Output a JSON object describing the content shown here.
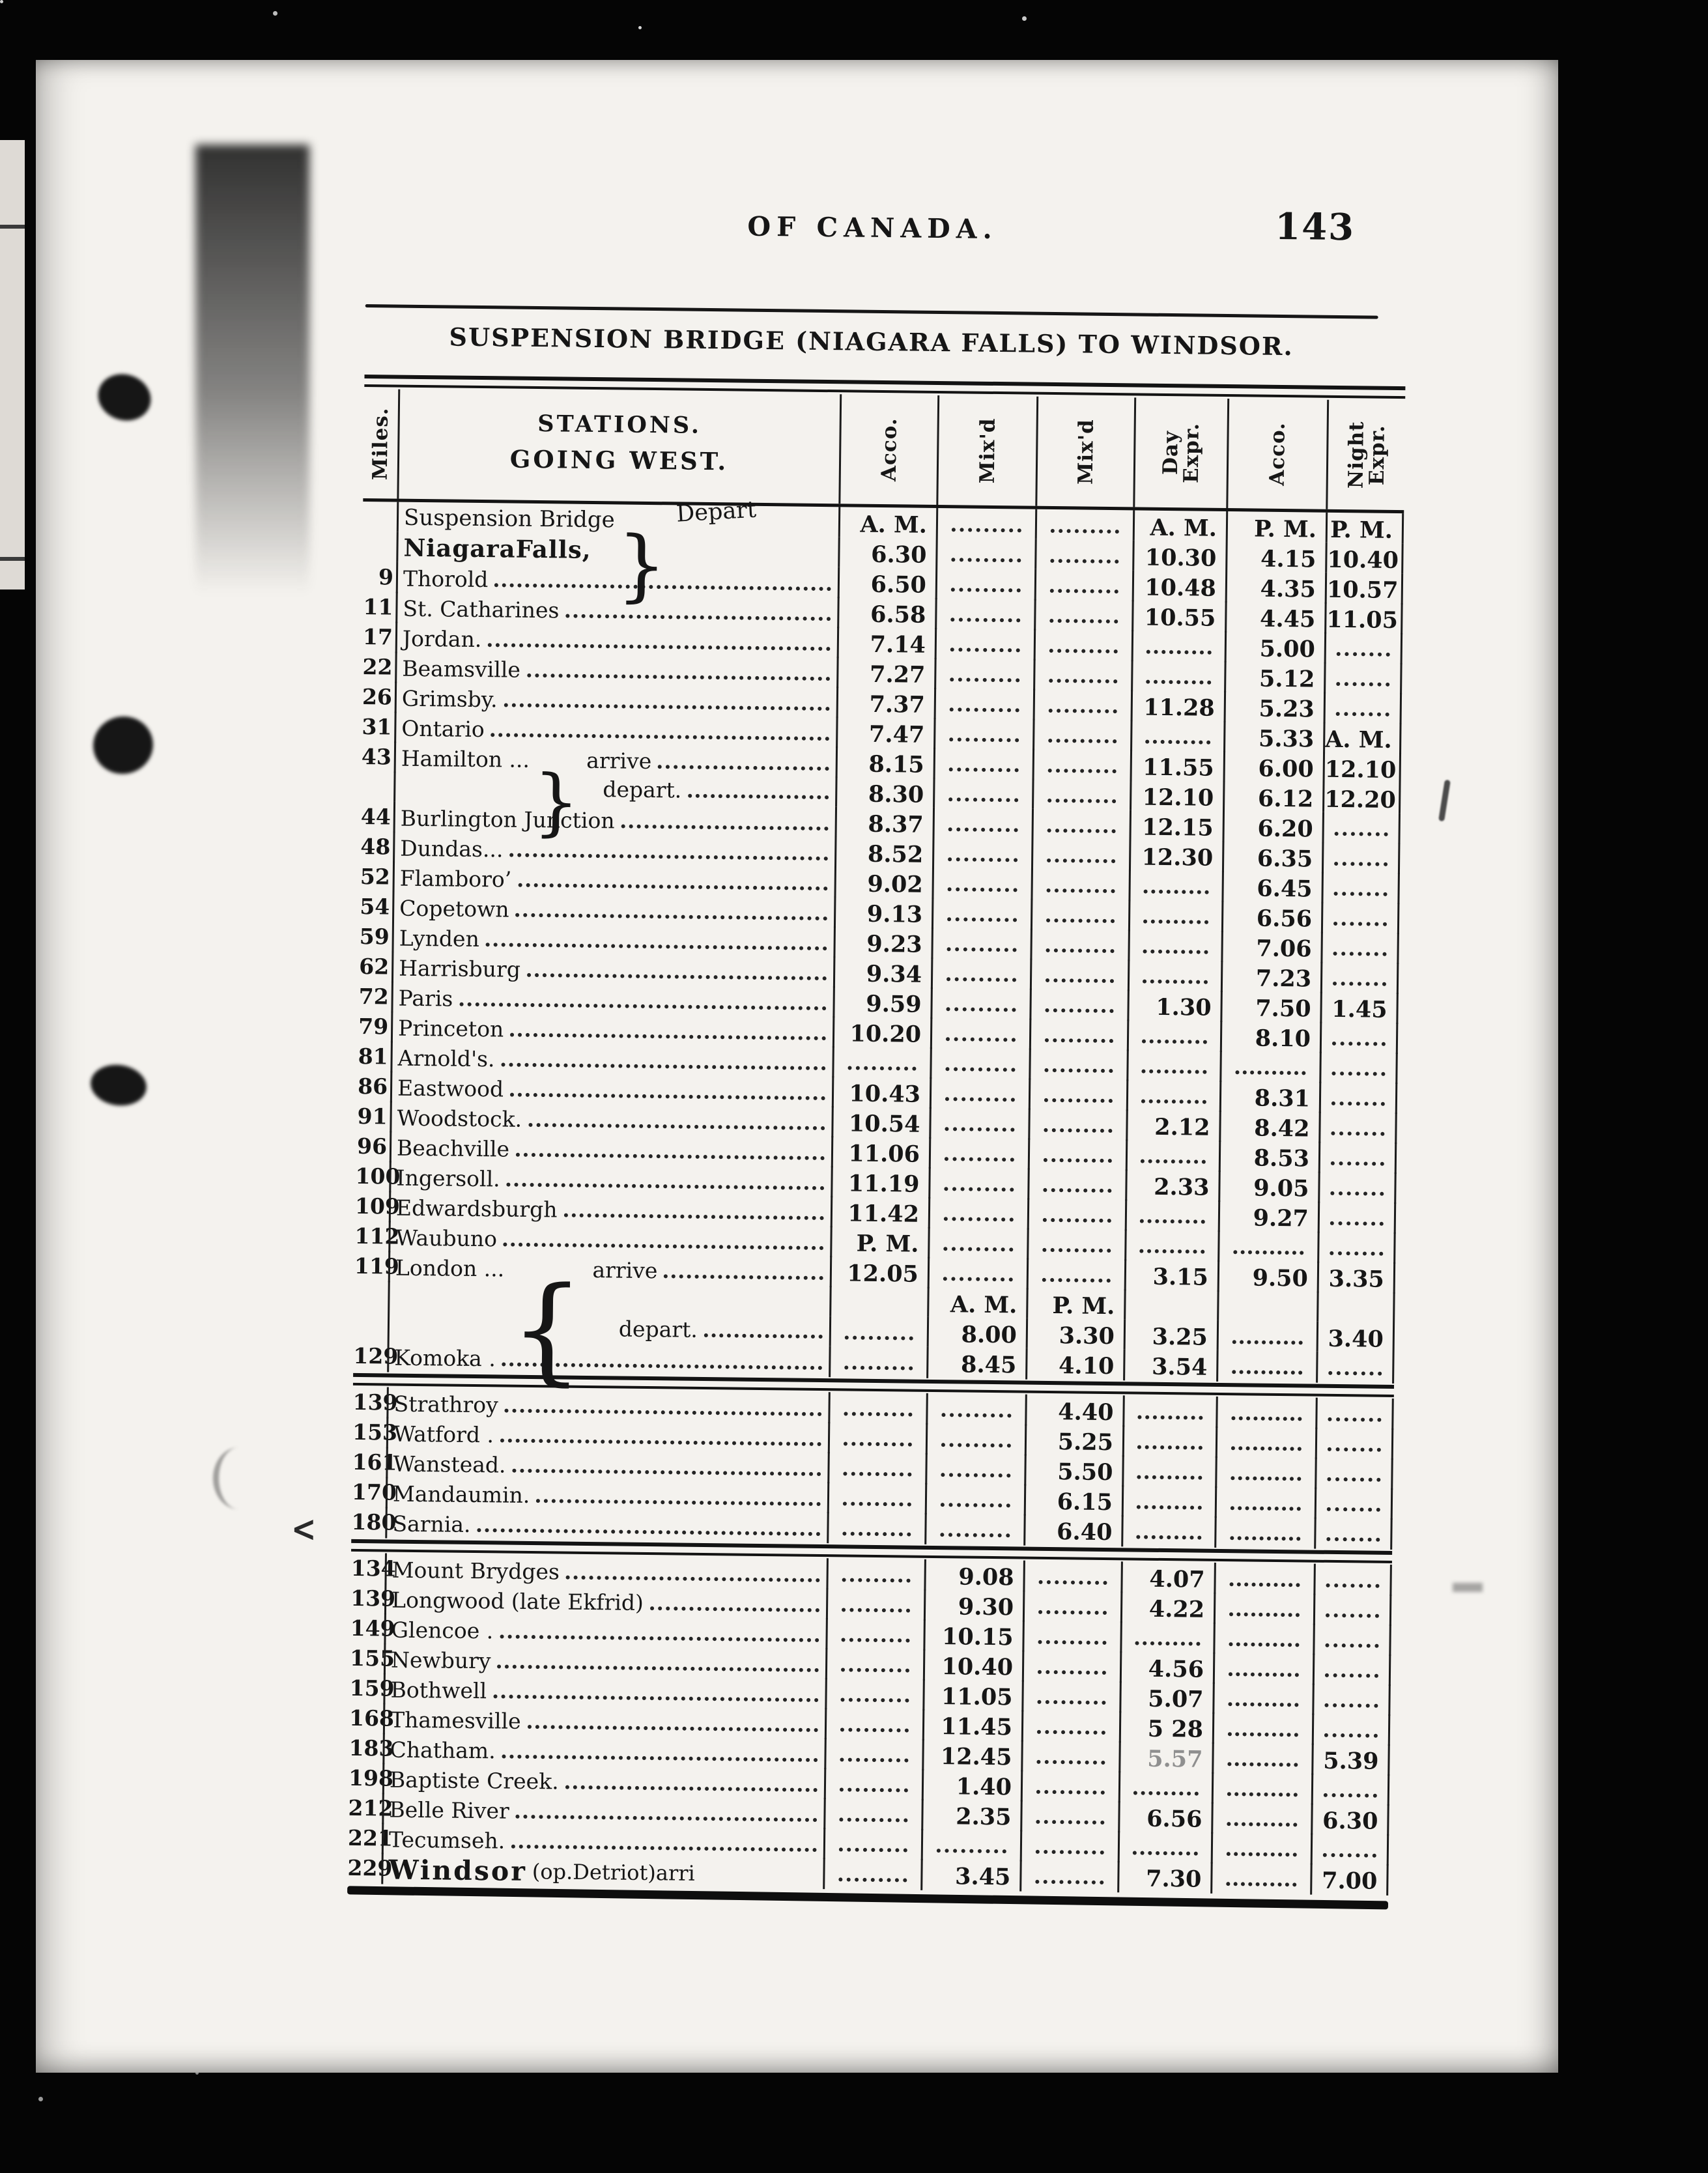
{
  "header": {
    "running_title": "OF CANADA.",
    "page_number": "143",
    "title": "SUSPENSION BRIDGE (NIAGARA FALLS) TO WINDSOR."
  },
  "table": {
    "col_headers": {
      "miles": "Miles.",
      "stations_line1": "STATIONS.",
      "stations_line2": "GOING WEST.",
      "time_cols": [
        "Acco.",
        "Mix'd",
        "Mix'd",
        "Day\nExpr.",
        "Acco.",
        "Night\nExpr."
      ]
    },
    "rows": [
      {
        "cls": "susp1",
        "n": "Suspension Bridge",
        "brace": "}",
        "tag": "Depart",
        "c": [
          "A. M.",
          "......",
          "......",
          "A. M.",
          "P. M.",
          "P. M."
        ]
      },
      {
        "cls": "susp2",
        "n": "NiagaraFalls,",
        "b": 1,
        "c": [
          "6.30",
          "......",
          "......",
          "10.30",
          "4.15",
          "10.40"
        ]
      },
      {
        "m": "9",
        "n": "Thorold",
        "lead": 1,
        "c": [
          "6.50",
          "......",
          "......",
          "10.48",
          "4.35",
          "10.57"
        ]
      },
      {
        "m": "11",
        "n": "St. Catharines",
        "lead": 1,
        "c": [
          "6.58",
          "......",
          "......",
          "10.55",
          "4.45",
          "11.05"
        ]
      },
      {
        "m": "17",
        "n": "Jordan.",
        "lead": 1,
        "c": [
          "7.14",
          "......",
          "......",
          "......",
          "5.00",
          "......"
        ]
      },
      {
        "m": "22",
        "n": "Beamsville",
        "lead": 1,
        "c": [
          "7.27",
          "......",
          "......",
          "......",
          "5.12",
          "......"
        ]
      },
      {
        "m": "26",
        "n": "Grimsby.",
        "lead": 1,
        "c": [
          "7.37",
          "......",
          "......",
          "11.28",
          "5.23",
          "......"
        ]
      },
      {
        "m": "31",
        "n": "Ontario",
        "lead": 1,
        "c": [
          "7.47",
          "......",
          "......",
          "......",
          "5.33",
          "A. M."
        ]
      },
      {
        "m": "43",
        "cls": "ham1",
        "n": "Hamilton ...",
        "brace": "}",
        "tag": "arrive",
        "lead": 1,
        "c": [
          "8.15",
          "......",
          "......",
          "11.55",
          "6.00",
          "12.10"
        ]
      },
      {
        "cls": "ham2",
        "tag": "depart.",
        "lead": 1,
        "c": [
          "8.30",
          "......",
          "......",
          "12.10",
          "6.12",
          "12.20"
        ]
      },
      {
        "m": "44",
        "n": "Burlington Junction",
        "lead": 1,
        "c": [
          "8.37",
          "......",
          "......",
          "12.15",
          "6.20",
          "......"
        ]
      },
      {
        "m": "48",
        "n": "Dundas...",
        "lead": 1,
        "c": [
          "8.52",
          "......",
          "......",
          "12.30",
          "6.35",
          "......"
        ]
      },
      {
        "m": "52",
        "n": "Flamboro’",
        "lead": 1,
        "c": [
          "9.02",
          "......",
          "......",
          "......",
          "6.45",
          "......"
        ]
      },
      {
        "m": "54",
        "n": "Copetown",
        "lead": 1,
        "c": [
          "9.13",
          "......",
          "......",
          "......",
          "6.56",
          "......"
        ]
      },
      {
        "m": "59",
        "n": "Lynden",
        "lead": 1,
        "c": [
          "9.23",
          "......",
          "......",
          "......",
          "7.06",
          "......"
        ]
      },
      {
        "m": "62",
        "n": "Harrisburg",
        "lead": 1,
        "c": [
          "9.34",
          "......",
          "......",
          "......",
          "7.23",
          "......"
        ]
      },
      {
        "m": "72",
        "n": "Paris",
        "lead": 1,
        "c": [
          "9.59",
          "......",
          "......",
          "1.30",
          "7.50",
          "1.45"
        ]
      },
      {
        "m": "79",
        "n": "Princeton",
        "lead": 1,
        "c": [
          "10.20",
          "......",
          "......",
          "......",
          "8.10",
          "......"
        ]
      },
      {
        "m": "81",
        "n": "Arnold's.",
        "lead": 1,
        "c": [
          "......",
          "......",
          "......",
          "......",
          "......",
          "......"
        ]
      },
      {
        "m": "86",
        "n": "Eastwood",
        "lead": 1,
        "c": [
          "10.43",
          "......",
          "......",
          "......",
          "8.31",
          "......"
        ]
      },
      {
        "m": "91",
        "n": "Woodstock.",
        "lead": 1,
        "c": [
          "10.54",
          "......",
          "......",
          "2.12",
          "8.42",
          "......"
        ]
      },
      {
        "m": "96",
        "n": "Beachville",
        "lead": 1,
        "c": [
          "11.06",
          "......",
          "......",
          "......",
          "8.53",
          "......"
        ]
      },
      {
        "m": "100",
        "n": "Ingersoll.",
        "lead": 1,
        "c": [
          "11.19",
          "......",
          "......",
          "2.33",
          "9.05",
          "......"
        ]
      },
      {
        "m": "109",
        "n": "Edwardsburgh",
        "lead": 1,
        "c": [
          "11.42",
          "......",
          "......",
          "......",
          "9.27",
          "......"
        ]
      },
      {
        "m": "112",
        "n": "Waubuno",
        "lead": 1,
        "c": [
          "P. M.",
          "......",
          "......",
          "......",
          "......",
          "......"
        ]
      },
      {
        "m": "119",
        "cls": "lon1",
        "n": "London ...",
        "brace": "{",
        "tag": "arrive",
        "lead": 1,
        "c": [
          "12.05",
          "......",
          "......",
          "3.15",
          "9.50",
          "3.35"
        ]
      },
      {
        "cls": "lonmk",
        "c": [
          "",
          "A. M.",
          "P. M.",
          "",
          "",
          ""
        ]
      },
      {
        "cls": "lon2",
        "tag": "depart.",
        "lead": 1,
        "c": [
          "......",
          "8.00",
          "3.30",
          "3.25",
          "......",
          "3.40"
        ]
      },
      {
        "m": "129",
        "n": "Komoka .",
        "lead": 1,
        "c": [
          "......",
          "8.45",
          "4.10",
          "3.54",
          "......",
          "......"
        ]
      },
      {
        "sep": 1
      },
      {
        "m": "139",
        "n": "Strathroy",
        "lead": 1,
        "c": [
          "......",
          "......",
          "4.40",
          "......",
          "......",
          "......"
        ]
      },
      {
        "m": "153",
        "n": "Watford .",
        "lead": 1,
        "c": [
          "......",
          "......",
          "5.25",
          "......",
          "......",
          "......"
        ]
      },
      {
        "m": "161",
        "n": "Wanstead.",
        "lead": 1,
        "c": [
          "......",
          "......",
          "5.50",
          "......",
          "......",
          "......"
        ]
      },
      {
        "m": "170",
        "n": "Mandaumin.",
        "lead": 1,
        "c": [
          "......",
          "......",
          "6.15",
          "......",
          "......",
          "......"
        ]
      },
      {
        "m": "180",
        "n": "Sarnia.",
        "lead": 1,
        "c": [
          "......",
          "......",
          "6.40",
          "......",
          "......",
          "......"
        ]
      },
      {
        "sep": 1
      },
      {
        "m": "134",
        "n": "Mount Brydges",
        "lead": 1,
        "c": [
          "......",
          "9.08",
          "......",
          "4.07",
          "......",
          "......"
        ]
      },
      {
        "m": "139",
        "n": "Longwood (late Ekfrid)",
        "lead": 1,
        "c": [
          "......",
          "9.30",
          "......",
          "4.22",
          "......",
          "......"
        ]
      },
      {
        "m": "149",
        "n": "Glencoe .",
        "lead": 1,
        "c": [
          "......",
          "10.15",
          "......",
          "......",
          "......",
          "......"
        ]
      },
      {
        "m": "155",
        "n": "Newbury",
        "lead": 1,
        "c": [
          "......",
          "10.40",
          "......",
          "4.56",
          "......",
          "......"
        ]
      },
      {
        "m": "159",
        "n": "Bothwell",
        "lead": 1,
        "c": [
          "......",
          "11.05",
          "......",
          "5.07",
          "......",
          "......"
        ]
      },
      {
        "m": "168",
        "n": "Thamesville",
        "lead": 1,
        "c": [
          "......",
          "11.45",
          "......",
          "5 28",
          "......",
          "......"
        ]
      },
      {
        "m": "183",
        "n": "Chatham.",
        "lead": 1,
        "faint": [
          3
        ],
        "c": [
          "......",
          "12.45",
          "......",
          "5.57",
          "......",
          "5.39"
        ]
      },
      {
        "m": "198",
        "n": "Baptiste Creek.",
        "lead": 1,
        "c": [
          "......",
          "1.40",
          "......",
          "......",
          "......",
          "......"
        ]
      },
      {
        "m": "212",
        "n": "Belle River",
        "lead": 1,
        "c": [
          "......",
          "2.35",
          "......",
          "6.56",
          "......",
          "6.30"
        ]
      },
      {
        "m": "221",
        "n": "Tecumseh.",
        "lead": 1,
        "c": [
          "......",
          "......",
          "......",
          "......",
          "......",
          "......"
        ]
      },
      {
        "m": "229",
        "cls": "windsor",
        "n": "Windsor",
        "b": 1,
        "n2": "(op.Detriot)arri",
        "c": [
          "......",
          "3.45",
          "......",
          "7.30",
          "......",
          "7.00"
        ]
      }
    ]
  }
}
